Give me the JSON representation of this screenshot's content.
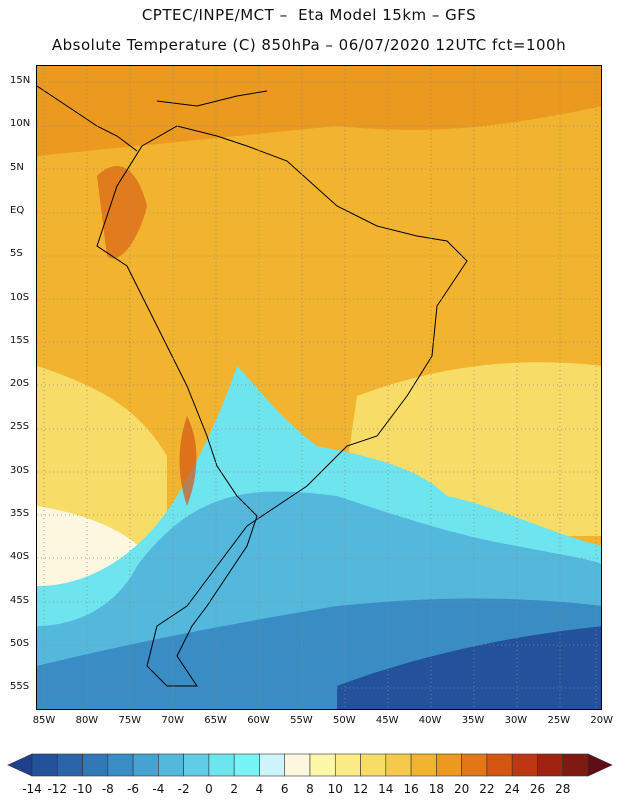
{
  "header": {
    "line1": "CPTEC/INPE/MCT –  Eta Model 15km – GFS",
    "line2": "Absolute Temperature (C) 850hPa – 06/07/2020 12UTC fct=100h"
  },
  "axes": {
    "lat_labels": [
      "15N",
      "10N",
      "5N",
      "EQ",
      "5S",
      "10S",
      "15S",
      "20S",
      "25S",
      "30S",
      "35S",
      "40S",
      "45S",
      "50S",
      "55S"
    ],
    "lon_labels": [
      "85W",
      "80W",
      "75W",
      "70W",
      "65W",
      "60W",
      "55W",
      "50W",
      "45W",
      "40W",
      "35W",
      "30W",
      "25W",
      "20W"
    ]
  },
  "colorbar": {
    "labels": [
      "-14",
      "-12",
      "-10",
      "-8",
      "-6",
      "-4",
      "-2",
      "0",
      "2",
      "4",
      "6",
      "8",
      "10",
      "12",
      "14",
      "16",
      "18",
      "20",
      "22",
      "24",
      "26",
      "28"
    ],
    "colors": [
      "#1f3f8f",
      "#23519c",
      "#2a65ab",
      "#3178b8",
      "#3a8cc4",
      "#46a2d0",
      "#54b8dc",
      "#61cce6",
      "#6ee4ef",
      "#79f4f6",
      "#ccf4fa",
      "#fdf7e0",
      "#fdf8a8",
      "#fbec88",
      "#f8dc68",
      "#f5c94c",
      "#f2b42f",
      "#ec9a1f",
      "#e27718",
      "#d45613",
      "#bd3812",
      "#9e2410",
      "#7f1a12",
      "#600c16"
    ]
  }
}
